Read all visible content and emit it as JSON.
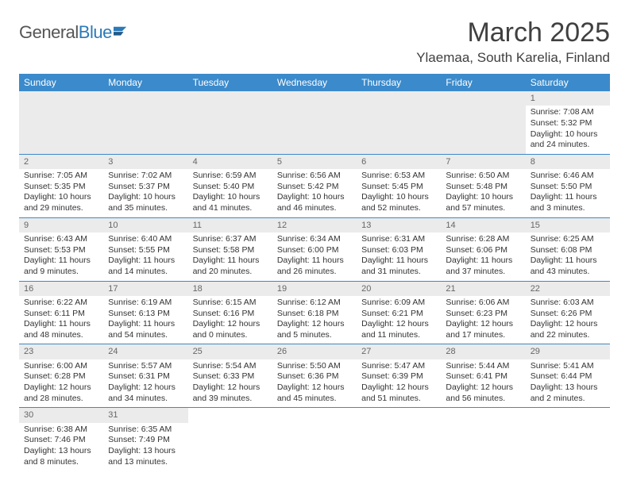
{
  "logo": {
    "text1": "General",
    "text2": "Blue"
  },
  "title": "March 2025",
  "location": "Ylaemaa, South Karelia, Finland",
  "colors": {
    "header_bg": "#3b8acb",
    "header_fg": "#ffffff",
    "border": "#3b8acb",
    "daybar_bg": "#ebebeb",
    "daybar_fg": "#666666",
    "text": "#333333"
  },
  "weekdays": [
    "Sunday",
    "Monday",
    "Tuesday",
    "Wednesday",
    "Thursday",
    "Friday",
    "Saturday"
  ],
  "weeks": [
    [
      null,
      null,
      null,
      null,
      null,
      null,
      {
        "n": "1",
        "sr": "7:08 AM",
        "ss": "5:32 PM",
        "dl": "10 hours and 24 minutes."
      }
    ],
    [
      {
        "n": "2",
        "sr": "7:05 AM",
        "ss": "5:35 PM",
        "dl": "10 hours and 29 minutes."
      },
      {
        "n": "3",
        "sr": "7:02 AM",
        "ss": "5:37 PM",
        "dl": "10 hours and 35 minutes."
      },
      {
        "n": "4",
        "sr": "6:59 AM",
        "ss": "5:40 PM",
        "dl": "10 hours and 41 minutes."
      },
      {
        "n": "5",
        "sr": "6:56 AM",
        "ss": "5:42 PM",
        "dl": "10 hours and 46 minutes."
      },
      {
        "n": "6",
        "sr": "6:53 AM",
        "ss": "5:45 PM",
        "dl": "10 hours and 52 minutes."
      },
      {
        "n": "7",
        "sr": "6:50 AM",
        "ss": "5:48 PM",
        "dl": "10 hours and 57 minutes."
      },
      {
        "n": "8",
        "sr": "6:46 AM",
        "ss": "5:50 PM",
        "dl": "11 hours and 3 minutes."
      }
    ],
    [
      {
        "n": "9",
        "sr": "6:43 AM",
        "ss": "5:53 PM",
        "dl": "11 hours and 9 minutes."
      },
      {
        "n": "10",
        "sr": "6:40 AM",
        "ss": "5:55 PM",
        "dl": "11 hours and 14 minutes."
      },
      {
        "n": "11",
        "sr": "6:37 AM",
        "ss": "5:58 PM",
        "dl": "11 hours and 20 minutes."
      },
      {
        "n": "12",
        "sr": "6:34 AM",
        "ss": "6:00 PM",
        "dl": "11 hours and 26 minutes."
      },
      {
        "n": "13",
        "sr": "6:31 AM",
        "ss": "6:03 PM",
        "dl": "11 hours and 31 minutes."
      },
      {
        "n": "14",
        "sr": "6:28 AM",
        "ss": "6:06 PM",
        "dl": "11 hours and 37 minutes."
      },
      {
        "n": "15",
        "sr": "6:25 AM",
        "ss": "6:08 PM",
        "dl": "11 hours and 43 minutes."
      }
    ],
    [
      {
        "n": "16",
        "sr": "6:22 AM",
        "ss": "6:11 PM",
        "dl": "11 hours and 48 minutes."
      },
      {
        "n": "17",
        "sr": "6:19 AM",
        "ss": "6:13 PM",
        "dl": "11 hours and 54 minutes."
      },
      {
        "n": "18",
        "sr": "6:15 AM",
        "ss": "6:16 PM",
        "dl": "12 hours and 0 minutes."
      },
      {
        "n": "19",
        "sr": "6:12 AM",
        "ss": "6:18 PM",
        "dl": "12 hours and 5 minutes."
      },
      {
        "n": "20",
        "sr": "6:09 AM",
        "ss": "6:21 PM",
        "dl": "12 hours and 11 minutes."
      },
      {
        "n": "21",
        "sr": "6:06 AM",
        "ss": "6:23 PM",
        "dl": "12 hours and 17 minutes."
      },
      {
        "n": "22",
        "sr": "6:03 AM",
        "ss": "6:26 PM",
        "dl": "12 hours and 22 minutes."
      }
    ],
    [
      {
        "n": "23",
        "sr": "6:00 AM",
        "ss": "6:28 PM",
        "dl": "12 hours and 28 minutes."
      },
      {
        "n": "24",
        "sr": "5:57 AM",
        "ss": "6:31 PM",
        "dl": "12 hours and 34 minutes."
      },
      {
        "n": "25",
        "sr": "5:54 AM",
        "ss": "6:33 PM",
        "dl": "12 hours and 39 minutes."
      },
      {
        "n": "26",
        "sr": "5:50 AM",
        "ss": "6:36 PM",
        "dl": "12 hours and 45 minutes."
      },
      {
        "n": "27",
        "sr": "5:47 AM",
        "ss": "6:39 PM",
        "dl": "12 hours and 51 minutes."
      },
      {
        "n": "28",
        "sr": "5:44 AM",
        "ss": "6:41 PM",
        "dl": "12 hours and 56 minutes."
      },
      {
        "n": "29",
        "sr": "5:41 AM",
        "ss": "6:44 PM",
        "dl": "13 hours and 2 minutes."
      }
    ],
    [
      {
        "n": "30",
        "sr": "6:38 AM",
        "ss": "7:46 PM",
        "dl": "13 hours and 8 minutes."
      },
      {
        "n": "31",
        "sr": "6:35 AM",
        "ss": "7:49 PM",
        "dl": "13 hours and 13 minutes."
      },
      null,
      null,
      null,
      null,
      null
    ]
  ],
  "labels": {
    "sunrise": "Sunrise:",
    "sunset": "Sunset:",
    "daylight": "Daylight:"
  }
}
